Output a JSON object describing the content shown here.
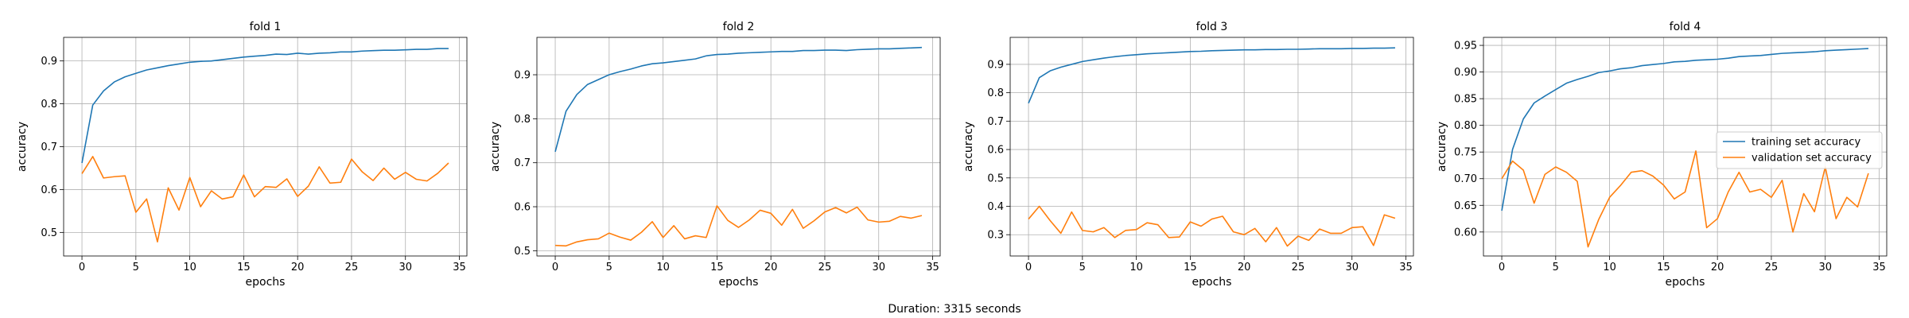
{
  "footer": {
    "duration": "Duration: 3315 seconds"
  },
  "colors": {
    "training": "#1f77b4",
    "validation": "#ff7f0e",
    "grid": "#b0b0b0"
  },
  "chart_data": [
    {
      "type": "line",
      "title": "fold 1",
      "xlabel": "epochs",
      "ylabel": "accuracy",
      "xlim": [
        -1.7,
        35.7
      ],
      "ylim": [
        0.445,
        0.955
      ],
      "xticks": [
        0,
        5,
        10,
        15,
        20,
        25,
        30,
        35
      ],
      "yticks": [
        0.5,
        0.6,
        0.7,
        0.8,
        0.9
      ],
      "ytick_labels": [
        "0.5",
        "0.6",
        "0.7",
        "0.8",
        "0.9"
      ],
      "grid": true,
      "legend": null,
      "x": [
        0,
        1,
        2,
        3,
        4,
        5,
        6,
        7,
        8,
        9,
        10,
        11,
        12,
        13,
        14,
        15,
        16,
        17,
        18,
        19,
        20,
        21,
        22,
        23,
        24,
        25,
        26,
        27,
        28,
        29,
        30,
        31,
        32,
        33,
        34
      ],
      "series": [
        {
          "name": "training set accuracy",
          "color": "#1f77b4",
          "values": [
            0.662,
            0.797,
            0.83,
            0.851,
            0.863,
            0.871,
            0.879,
            0.884,
            0.889,
            0.893,
            0.897,
            0.899,
            0.9,
            0.903,
            0.906,
            0.909,
            0.911,
            0.913,
            0.916,
            0.915,
            0.918,
            0.916,
            0.918,
            0.919,
            0.921,
            0.921,
            0.923,
            0.924,
            0.925,
            0.925,
            0.926,
            0.927,
            0.927,
            0.929,
            0.929
          ]
        },
        {
          "name": "validation set accuracy",
          "color": "#ff7f0e",
          "values": [
            0.637,
            0.677,
            0.627,
            0.63,
            0.632,
            0.547,
            0.578,
            0.478,
            0.604,
            0.552,
            0.628,
            0.56,
            0.597,
            0.578,
            0.583,
            0.634,
            0.583,
            0.607,
            0.605,
            0.625,
            0.584,
            0.608,
            0.653,
            0.615,
            0.617,
            0.671,
            0.641,
            0.621,
            0.65,
            0.624,
            0.64,
            0.624,
            0.62,
            0.638,
            0.662
          ]
        }
      ]
    },
    {
      "type": "line",
      "title": "fold 2",
      "xlabel": "epochs",
      "ylabel": "accuracy",
      "xlim": [
        -1.7,
        35.7
      ],
      "ylim": [
        0.488,
        0.985
      ],
      "xticks": [
        0,
        5,
        10,
        15,
        20,
        25,
        30,
        35
      ],
      "yticks": [
        0.5,
        0.6,
        0.7,
        0.8,
        0.9
      ],
      "ytick_labels": [
        "0.5",
        "0.6",
        "0.7",
        "0.8",
        "0.9"
      ],
      "grid": true,
      "legend": null,
      "x": [
        0,
        1,
        2,
        3,
        4,
        5,
        6,
        7,
        8,
        9,
        10,
        11,
        12,
        13,
        14,
        15,
        16,
        17,
        18,
        19,
        20,
        21,
        22,
        23,
        24,
        25,
        26,
        27,
        28,
        29,
        30,
        31,
        32,
        33,
        34
      ],
      "series": [
        {
          "name": "training set accuracy",
          "color": "#1f77b4",
          "values": [
            0.725,
            0.817,
            0.855,
            0.878,
            0.889,
            0.9,
            0.907,
            0.913,
            0.92,
            0.925,
            0.927,
            0.93,
            0.933,
            0.936,
            0.943,
            0.946,
            0.947,
            0.949,
            0.95,
            0.951,
            0.952,
            0.953,
            0.953,
            0.955,
            0.955,
            0.956,
            0.956,
            0.955,
            0.957,
            0.958,
            0.959,
            0.959,
            0.96,
            0.961,
            0.962
          ]
        },
        {
          "name": "validation set accuracy",
          "color": "#ff7f0e",
          "values": [
            0.512,
            0.511,
            0.52,
            0.525,
            0.527,
            0.54,
            0.531,
            0.524,
            0.542,
            0.566,
            0.53,
            0.557,
            0.527,
            0.534,
            0.53,
            0.602,
            0.569,
            0.553,
            0.57,
            0.592,
            0.585,
            0.558,
            0.594,
            0.551,
            0.568,
            0.588,
            0.598,
            0.586,
            0.599,
            0.57,
            0.565,
            0.567,
            0.578,
            0.574,
            0.58
          ]
        }
      ]
    },
    {
      "type": "line",
      "title": "fold 3",
      "xlabel": "epochs",
      "ylabel": "accuracy",
      "xlim": [
        -1.7,
        35.7
      ],
      "ylim": [
        0.225,
        0.995
      ],
      "xticks": [
        0,
        5,
        10,
        15,
        20,
        25,
        30,
        35
      ],
      "yticks": [
        0.3,
        0.4,
        0.5,
        0.6,
        0.7,
        0.8,
        0.9
      ],
      "ytick_labels": [
        "0.3",
        "0.4",
        "0.5",
        "0.6",
        "0.7",
        "0.8",
        "0.9"
      ],
      "grid": true,
      "legend": null,
      "x": [
        0,
        1,
        2,
        3,
        4,
        5,
        6,
        7,
        8,
        9,
        10,
        11,
        12,
        13,
        14,
        15,
        16,
        17,
        18,
        19,
        20,
        21,
        22,
        23,
        24,
        25,
        26,
        27,
        28,
        29,
        30,
        31,
        32,
        33,
        34
      ],
      "series": [
        {
          "name": "training set accuracy",
          "color": "#1f77b4",
          "values": [
            0.763,
            0.853,
            0.877,
            0.89,
            0.9,
            0.91,
            0.916,
            0.922,
            0.927,
            0.931,
            0.934,
            0.937,
            0.939,
            0.941,
            0.943,
            0.945,
            0.946,
            0.948,
            0.949,
            0.95,
            0.951,
            0.951,
            0.952,
            0.952,
            0.953,
            0.953,
            0.954,
            0.955,
            0.955,
            0.955,
            0.956,
            0.956,
            0.957,
            0.957,
            0.958
          ]
        },
        {
          "name": "validation set accuracy",
          "color": "#ff7f0e",
          "values": [
            0.355,
            0.4,
            0.35,
            0.305,
            0.38,
            0.315,
            0.31,
            0.325,
            0.29,
            0.315,
            0.318,
            0.342,
            0.335,
            0.29,
            0.292,
            0.345,
            0.33,
            0.355,
            0.365,
            0.31,
            0.3,
            0.322,
            0.275,
            0.325,
            0.26,
            0.295,
            0.28,
            0.32,
            0.305,
            0.305,
            0.325,
            0.328,
            0.262,
            0.37,
            0.358
          ]
        }
      ]
    },
    {
      "type": "line",
      "title": "fold 4",
      "xlabel": "epochs",
      "ylabel": "accuracy",
      "xlim": [
        -1.7,
        35.7
      ],
      "ylim": [
        0.555,
        0.965
      ],
      "xticks": [
        0,
        5,
        10,
        15,
        20,
        25,
        30,
        35
      ],
      "yticks": [
        0.6,
        0.65,
        0.7,
        0.75,
        0.8,
        0.85,
        0.9,
        0.95
      ],
      "ytick_labels": [
        "0.60",
        "0.65",
        "0.70",
        "0.75",
        "0.80",
        "0.85",
        "0.90",
        "0.95"
      ],
      "grid": true,
      "legend": "center-right",
      "x": [
        0,
        1,
        2,
        3,
        4,
        5,
        6,
        7,
        8,
        9,
        10,
        11,
        12,
        13,
        14,
        15,
        16,
        17,
        18,
        19,
        20,
        21,
        22,
        23,
        24,
        25,
        26,
        27,
        28,
        29,
        30,
        31,
        32,
        33,
        34
      ],
      "series": [
        {
          "name": "training set accuracy",
          "color": "#1f77b4",
          "values": [
            0.64,
            0.755,
            0.812,
            0.842,
            0.855,
            0.867,
            0.879,
            0.886,
            0.892,
            0.899,
            0.902,
            0.906,
            0.908,
            0.912,
            0.914,
            0.916,
            0.919,
            0.92,
            0.922,
            0.923,
            0.924,
            0.926,
            0.929,
            0.93,
            0.931,
            0.933,
            0.935,
            0.936,
            0.937,
            0.938,
            0.94,
            0.941,
            0.942,
            0.943,
            0.944
          ]
        },
        {
          "name": "validation set accuracy",
          "color": "#ff7f0e",
          "values": [
            0.7,
            0.733,
            0.716,
            0.654,
            0.708,
            0.722,
            0.712,
            0.695,
            0.572,
            0.624,
            0.665,
            0.687,
            0.712,
            0.715,
            0.705,
            0.688,
            0.662,
            0.675,
            0.752,
            0.608,
            0.625,
            0.675,
            0.712,
            0.675,
            0.68,
            0.665,
            0.697,
            0.6,
            0.672,
            0.638,
            0.722,
            0.625,
            0.665,
            0.647,
            0.71
          ]
        }
      ]
    }
  ]
}
